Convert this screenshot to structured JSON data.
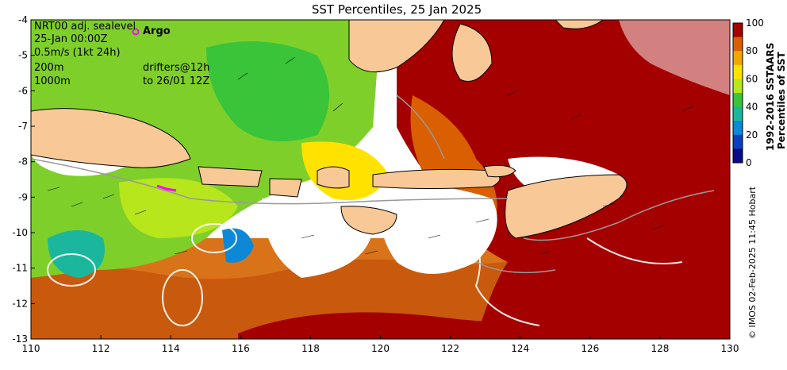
{
  "title": "SST Percentiles, 25 Jan 2025",
  "legend_lines": [
    "NRT00 adj. sealevel",
    "25-Jan 00:00Z",
    "0.5m/s (1kt 24h)",
    "200m",
    "1000m"
  ],
  "argo_label": "Argo",
  "drifter_lines": [
    "drifters@12h",
    "to 26/01 12Z"
  ],
  "colorbar": {
    "ticks": [
      "100",
      "80",
      "60",
      "40",
      "20",
      "0"
    ],
    "title_line1": "1992-2016 SSTAARS",
    "title_line2": "Percentiles of SST",
    "colors": [
      "#a50000",
      "#d95f00",
      "#f2a600",
      "#ffe200",
      "#b7e61c",
      "#39c43a",
      "#1bb79c",
      "#0c88d6",
      "#0a3fbf",
      "#0a0a8c"
    ]
  },
  "credit": "© IMOS 02-Feb-2025 11:45 Hobart",
  "axis": {
    "x_ticks": [
      "110",
      "112",
      "114",
      "116",
      "118",
      "120",
      "122",
      "124",
      "126",
      "128",
      "130"
    ],
    "y_ticks": [
      "-4",
      "-5",
      "-6",
      "-7",
      "-8",
      "-9",
      "-10",
      "-11",
      "-12",
      "-13"
    ]
  },
  "colors": {
    "land": "#f8c896",
    "frame": "#000000"
  }
}
